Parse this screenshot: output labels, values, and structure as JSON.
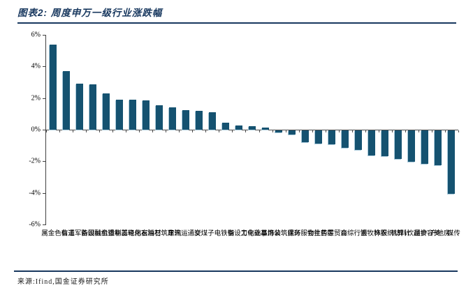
{
  "header": {
    "title": "图表2: 周度申万一级行业涨跌幅"
  },
  "footer": {
    "source": "来源:Ifind,国金证券研究所"
  },
  "colors": {
    "accent_navy": "#17375E",
    "bar": "#155270",
    "bar_edge_highlight": "#a9cadb",
    "zero_line": "#4d4d4d",
    "axis": "#404040"
  },
  "chart_data": {
    "type": "bar",
    "title": "周度申万一级行业涨跌幅",
    "xlabel": "",
    "ylabel": "",
    "unit": "%",
    "grid": false,
    "legend": null,
    "ylim": [
      -6,
      6
    ],
    "yticks": [
      6,
      4,
      2,
      0,
      -2,
      -4,
      -6
    ],
    "ytick_labels": [
      "6%",
      "4%",
      "2%",
      "0%",
      "-2%",
      "-4%",
      "-6%"
    ],
    "categories": [
      "有色金属",
      "通信",
      "国防军工",
      "机械设备",
      "非银金融",
      "轻工制造",
      "家用电器",
      "石油石化",
      "建筑材料",
      "汽车",
      "交通运输",
      "煤炭",
      "电子",
      "钢铁",
      "电力设备",
      "基础化工",
      "公用事业",
      "建筑装饰",
      "环保",
      "社会服务",
      "医药生物",
      "商贸零售",
      "综合",
      "银行",
      "农林牧渔",
      "纺织服饰",
      "计算机",
      "食品饮料",
      "美容护理",
      "房地产",
      "传媒"
    ],
    "values": [
      5.4,
      3.7,
      2.9,
      2.85,
      2.3,
      1.9,
      1.88,
      1.85,
      1.55,
      1.4,
      1.25,
      1.2,
      1.1,
      0.45,
      0.25,
      0.2,
      0.15,
      -0.15,
      -0.25,
      -0.75,
      -0.85,
      -0.9,
      -1.1,
      -1.25,
      -1.6,
      -1.65,
      -1.8,
      -2.0,
      -2.1,
      -2.2,
      -4.0
    ]
  }
}
